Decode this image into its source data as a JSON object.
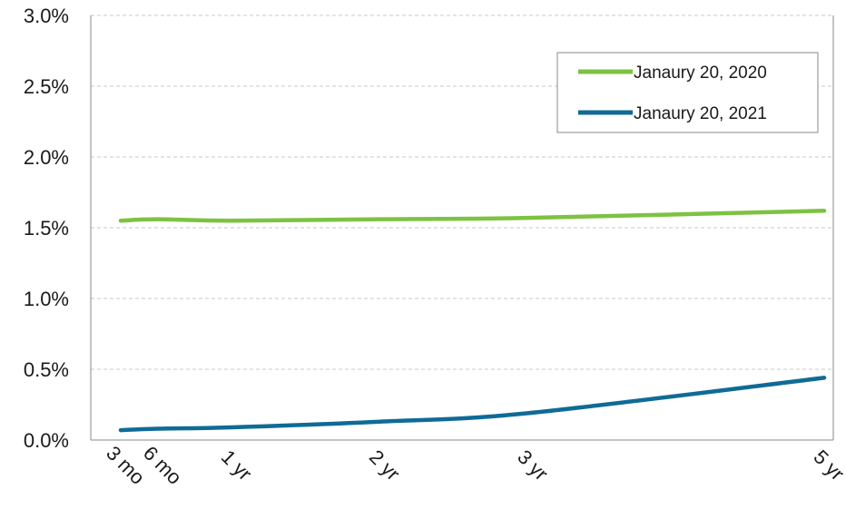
{
  "chart_data": {
    "type": "line",
    "title": "",
    "xlabel": "",
    "ylabel": "",
    "categories": [
      "3 mo",
      "6 mo",
      "1 yr",
      "2 yr",
      "3 yr",
      "5 yr"
    ],
    "x_positions": [
      0.25,
      0.5,
      1,
      2,
      3,
      5
    ],
    "ylim": [
      0,
      3.0
    ],
    "yticks": [
      "0.0%",
      "0.5%",
      "1.0%",
      "1.5%",
      "2.0%",
      "2.5%",
      "3.0%"
    ],
    "grid": true,
    "legend_position": "top-right",
    "series": [
      {
        "name": "Janaury 20, 2020",
        "color": "#7dc242",
        "values": [
          1.55,
          1.56,
          1.55,
          1.56,
          1.57,
          1.62
        ]
      },
      {
        "name": "Janaury 20, 2021",
        "color": "#0f6b96",
        "values": [
          0.07,
          0.08,
          0.09,
          0.13,
          0.19,
          0.44
        ]
      }
    ]
  }
}
